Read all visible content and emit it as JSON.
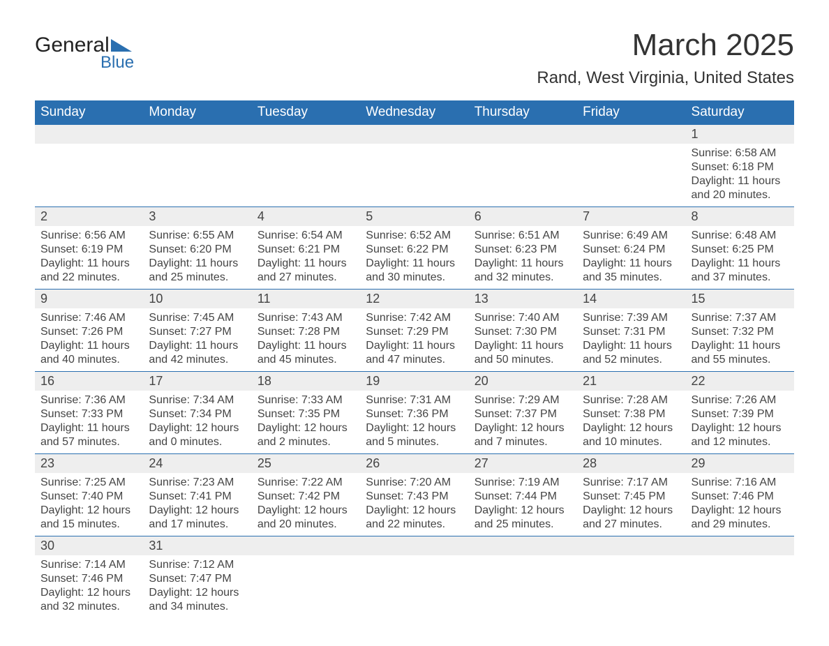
{
  "logo": {
    "text1": "General",
    "text2": "Blue"
  },
  "title": "March 2025",
  "location": "Rand, West Virginia, United States",
  "colors": {
    "header_bg": "#2a6fb0",
    "header_text": "#ffffff",
    "daynum_bg": "#eeeeee",
    "text": "#444444",
    "page_bg": "#ffffff"
  },
  "day_headers": [
    "Sunday",
    "Monday",
    "Tuesday",
    "Wednesday",
    "Thursday",
    "Friday",
    "Saturday"
  ],
  "weeks": [
    [
      null,
      null,
      null,
      null,
      null,
      null,
      {
        "n": "1",
        "sunrise": "6:58 AM",
        "sunset": "6:18 PM",
        "dl1": "Daylight: 11 hours",
        "dl2": "and 20 minutes."
      }
    ],
    [
      {
        "n": "2",
        "sunrise": "6:56 AM",
        "sunset": "6:19 PM",
        "dl1": "Daylight: 11 hours",
        "dl2": "and 22 minutes."
      },
      {
        "n": "3",
        "sunrise": "6:55 AM",
        "sunset": "6:20 PM",
        "dl1": "Daylight: 11 hours",
        "dl2": "and 25 minutes."
      },
      {
        "n": "4",
        "sunrise": "6:54 AM",
        "sunset": "6:21 PM",
        "dl1": "Daylight: 11 hours",
        "dl2": "and 27 minutes."
      },
      {
        "n": "5",
        "sunrise": "6:52 AM",
        "sunset": "6:22 PM",
        "dl1": "Daylight: 11 hours",
        "dl2": "and 30 minutes."
      },
      {
        "n": "6",
        "sunrise": "6:51 AM",
        "sunset": "6:23 PM",
        "dl1": "Daylight: 11 hours",
        "dl2": "and 32 minutes."
      },
      {
        "n": "7",
        "sunrise": "6:49 AM",
        "sunset": "6:24 PM",
        "dl1": "Daylight: 11 hours",
        "dl2": "and 35 minutes."
      },
      {
        "n": "8",
        "sunrise": "6:48 AM",
        "sunset": "6:25 PM",
        "dl1": "Daylight: 11 hours",
        "dl2": "and 37 minutes."
      }
    ],
    [
      {
        "n": "9",
        "sunrise": "7:46 AM",
        "sunset": "7:26 PM",
        "dl1": "Daylight: 11 hours",
        "dl2": "and 40 minutes."
      },
      {
        "n": "10",
        "sunrise": "7:45 AM",
        "sunset": "7:27 PM",
        "dl1": "Daylight: 11 hours",
        "dl2": "and 42 minutes."
      },
      {
        "n": "11",
        "sunrise": "7:43 AM",
        "sunset": "7:28 PM",
        "dl1": "Daylight: 11 hours",
        "dl2": "and 45 minutes."
      },
      {
        "n": "12",
        "sunrise": "7:42 AM",
        "sunset": "7:29 PM",
        "dl1": "Daylight: 11 hours",
        "dl2": "and 47 minutes."
      },
      {
        "n": "13",
        "sunrise": "7:40 AM",
        "sunset": "7:30 PM",
        "dl1": "Daylight: 11 hours",
        "dl2": "and 50 minutes."
      },
      {
        "n": "14",
        "sunrise": "7:39 AM",
        "sunset": "7:31 PM",
        "dl1": "Daylight: 11 hours",
        "dl2": "and 52 minutes."
      },
      {
        "n": "15",
        "sunrise": "7:37 AM",
        "sunset": "7:32 PM",
        "dl1": "Daylight: 11 hours",
        "dl2": "and 55 minutes."
      }
    ],
    [
      {
        "n": "16",
        "sunrise": "7:36 AM",
        "sunset": "7:33 PM",
        "dl1": "Daylight: 11 hours",
        "dl2": "and 57 minutes."
      },
      {
        "n": "17",
        "sunrise": "7:34 AM",
        "sunset": "7:34 PM",
        "dl1": "Daylight: 12 hours",
        "dl2": "and 0 minutes."
      },
      {
        "n": "18",
        "sunrise": "7:33 AM",
        "sunset": "7:35 PM",
        "dl1": "Daylight: 12 hours",
        "dl2": "and 2 minutes."
      },
      {
        "n": "19",
        "sunrise": "7:31 AM",
        "sunset": "7:36 PM",
        "dl1": "Daylight: 12 hours",
        "dl2": "and 5 minutes."
      },
      {
        "n": "20",
        "sunrise": "7:29 AM",
        "sunset": "7:37 PM",
        "dl1": "Daylight: 12 hours",
        "dl2": "and 7 minutes."
      },
      {
        "n": "21",
        "sunrise": "7:28 AM",
        "sunset": "7:38 PM",
        "dl1": "Daylight: 12 hours",
        "dl2": "and 10 minutes."
      },
      {
        "n": "22",
        "sunrise": "7:26 AM",
        "sunset": "7:39 PM",
        "dl1": "Daylight: 12 hours",
        "dl2": "and 12 minutes."
      }
    ],
    [
      {
        "n": "23",
        "sunrise": "7:25 AM",
        "sunset": "7:40 PM",
        "dl1": "Daylight: 12 hours",
        "dl2": "and 15 minutes."
      },
      {
        "n": "24",
        "sunrise": "7:23 AM",
        "sunset": "7:41 PM",
        "dl1": "Daylight: 12 hours",
        "dl2": "and 17 minutes."
      },
      {
        "n": "25",
        "sunrise": "7:22 AM",
        "sunset": "7:42 PM",
        "dl1": "Daylight: 12 hours",
        "dl2": "and 20 minutes."
      },
      {
        "n": "26",
        "sunrise": "7:20 AM",
        "sunset": "7:43 PM",
        "dl1": "Daylight: 12 hours",
        "dl2": "and 22 minutes."
      },
      {
        "n": "27",
        "sunrise": "7:19 AM",
        "sunset": "7:44 PM",
        "dl1": "Daylight: 12 hours",
        "dl2": "and 25 minutes."
      },
      {
        "n": "28",
        "sunrise": "7:17 AM",
        "sunset": "7:45 PM",
        "dl1": "Daylight: 12 hours",
        "dl2": "and 27 minutes."
      },
      {
        "n": "29",
        "sunrise": "7:16 AM",
        "sunset": "7:46 PM",
        "dl1": "Daylight: 12 hours",
        "dl2": "and 29 minutes."
      }
    ],
    [
      {
        "n": "30",
        "sunrise": "7:14 AM",
        "sunset": "7:46 PM",
        "dl1": "Daylight: 12 hours",
        "dl2": "and 32 minutes."
      },
      {
        "n": "31",
        "sunrise": "7:12 AM",
        "sunset": "7:47 PM",
        "dl1": "Daylight: 12 hours",
        "dl2": "and 34 minutes."
      },
      null,
      null,
      null,
      null,
      null
    ]
  ]
}
